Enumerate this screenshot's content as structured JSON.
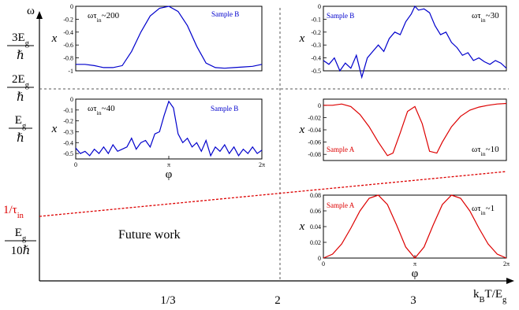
{
  "main_axes": {
    "x_label": "k",
    "x_label_sub": "B",
    "x_label_mid": "T/E",
    "x_label_sub2": "g",
    "x_ticks": [
      "1/3",
      "2",
      "3"
    ],
    "y_label": "ω",
    "y_levels": [
      {
        "num": "3E",
        "num_sub": "g",
        "den": "ℏ"
      },
      {
        "num": "2E",
        "num_sub": "g",
        "den": "ℏ"
      },
      {
        "num": "E",
        "num_sub": "g",
        "den": "ℏ"
      },
      {
        "num": "E",
        "num_sub": "g",
        "den": "10ℏ"
      }
    ],
    "tau_label": "1/τ",
    "tau_label_sub": "in",
    "tau_color": "#dd0000",
    "future_work": "Future work"
  },
  "chart_data": [
    {
      "type": "line",
      "name": "top-left",
      "annotation": "ωτ",
      "annotation_sub": "in",
      "annotation_tail": "~200",
      "sample": "Sample B",
      "color": "#0000cc",
      "ylabel": "x",
      "ylim": [
        -1,
        0
      ],
      "yticks": [
        "0",
        "-0.2",
        "-0.4",
        "-0.6",
        "-0.8",
        "-1"
      ],
      "x": [
        0,
        0.05,
        0.1,
        0.15,
        0.2,
        0.25,
        0.3,
        0.35,
        0.4,
        0.45,
        0.5,
        0.55,
        0.6,
        0.65,
        0.7,
        0.75,
        0.8,
        0.85,
        0.9,
        0.95,
        1
      ],
      "y": [
        -0.9,
        -0.9,
        -0.92,
        -0.95,
        -0.95,
        -0.92,
        -0.7,
        -0.4,
        -0.15,
        -0.03,
        0,
        -0.08,
        -0.3,
        -0.62,
        -0.88,
        -0.95,
        -0.96,
        -0.95,
        -0.94,
        -0.93,
        -0.9
      ]
    },
    {
      "type": "line",
      "name": "top-right",
      "annotation": "ωτ",
      "annotation_sub": "in",
      "annotation_tail": "~30",
      "sample": "Sample B",
      "color": "#0000cc",
      "ylabel": "x",
      "ylim": [
        -0.5,
        0
      ],
      "yticks": [
        "0",
        "-0.1",
        "-0.2",
        "-0.3",
        "-0.4",
        "-0.5"
      ],
      "x": [
        0,
        0.03,
        0.06,
        0.09,
        0.12,
        0.15,
        0.18,
        0.21,
        0.24,
        0.27,
        0.3,
        0.33,
        0.36,
        0.39,
        0.42,
        0.45,
        0.48,
        0.5,
        0.52,
        0.55,
        0.58,
        0.61,
        0.64,
        0.67,
        0.7,
        0.73,
        0.76,
        0.79,
        0.82,
        0.85,
        0.88,
        0.91,
        0.94,
        0.97,
        1
      ],
      "y": [
        -0.42,
        -0.45,
        -0.4,
        -0.5,
        -0.44,
        -0.48,
        -0.38,
        -0.55,
        -0.4,
        -0.35,
        -0.3,
        -0.35,
        -0.25,
        -0.2,
        -0.22,
        -0.12,
        -0.06,
        0,
        -0.03,
        -0.02,
        -0.05,
        -0.15,
        -0.22,
        -0.2,
        -0.28,
        -0.32,
        -0.38,
        -0.36,
        -0.42,
        -0.4,
        -0.43,
        -0.45,
        -0.42,
        -0.44,
        -0.48
      ]
    },
    {
      "type": "line",
      "name": "middle-left",
      "annotation": "ωτ",
      "annotation_sub": "in",
      "annotation_tail": "~40",
      "sample": "Sample B",
      "color": "#0000cc",
      "ylabel": "x",
      "xlabel": "φ",
      "ylim": [
        -0.55,
        0
      ],
      "yticks": [
        "0",
        "-0.1",
        "-0.2",
        "-0.3",
        "-0.4",
        "-0.5"
      ],
      "xticks": [
        "0",
        "π",
        "2π"
      ],
      "x": [
        0,
        0.025,
        0.05,
        0.075,
        0.1,
        0.125,
        0.15,
        0.175,
        0.2,
        0.225,
        0.25,
        0.275,
        0.3,
        0.325,
        0.35,
        0.375,
        0.4,
        0.425,
        0.45,
        0.475,
        0.5,
        0.525,
        0.55,
        0.575,
        0.6,
        0.625,
        0.65,
        0.675,
        0.7,
        0.725,
        0.75,
        0.775,
        0.8,
        0.825,
        0.85,
        0.875,
        0.9,
        0.925,
        0.95,
        0.975,
        1
      ],
      "y": [
        -0.45,
        -0.5,
        -0.48,
        -0.52,
        -0.46,
        -0.5,
        -0.44,
        -0.5,
        -0.42,
        -0.48,
        -0.46,
        -0.44,
        -0.36,
        -0.46,
        -0.4,
        -0.38,
        -0.44,
        -0.32,
        -0.3,
        -0.15,
        -0.02,
        -0.08,
        -0.32,
        -0.4,
        -0.36,
        -0.44,
        -0.4,
        -0.48,
        -0.38,
        -0.52,
        -0.44,
        -0.48,
        -0.42,
        -0.5,
        -0.44,
        -0.52,
        -0.46,
        -0.5,
        -0.44,
        -0.5,
        -0.47
      ]
    },
    {
      "type": "line",
      "name": "middle-right",
      "annotation": "ωτ",
      "annotation_sub": "in",
      "annotation_tail": "~10",
      "sample": "Sample A",
      "color": "#dd0000",
      "ylabel": "x",
      "ylim": [
        -0.09,
        0.01
      ],
      "yticks": [
        "0",
        "-0.02",
        "-0.04",
        "-0.06",
        "-0.08"
      ],
      "x": [
        0,
        0.05,
        0.1,
        0.15,
        0.2,
        0.25,
        0.3,
        0.35,
        0.38,
        0.42,
        0.46,
        0.5,
        0.54,
        0.58,
        0.62,
        0.65,
        0.7,
        0.75,
        0.8,
        0.85,
        0.9,
        0.95,
        1
      ],
      "y": [
        0,
        0,
        0.002,
        -0.002,
        -0.015,
        -0.035,
        -0.06,
        -0.082,
        -0.078,
        -0.045,
        -0.01,
        -0.002,
        -0.03,
        -0.075,
        -0.078,
        -0.06,
        -0.035,
        -0.018,
        -0.008,
        -0.003,
        0,
        0.002,
        0.003
      ]
    },
    {
      "type": "line",
      "name": "bottom-right",
      "annotation": "ωτ",
      "annotation_sub": "in",
      "annotation_tail": "~1",
      "sample": "Sample A",
      "color": "#dd0000",
      "ylabel": "x",
      "xlabel": "φ",
      "ylim": [
        0,
        0.08
      ],
      "yticks": [
        "0.08",
        "0.06",
        "0.04",
        "0.02",
        "0"
      ],
      "xticks": [
        "0",
        "π",
        "2π"
      ],
      "x": [
        0,
        0.05,
        0.1,
        0.15,
        0.2,
        0.25,
        0.3,
        0.35,
        0.4,
        0.45,
        0.5,
        0.55,
        0.6,
        0.65,
        0.7,
        0.75,
        0.8,
        0.85,
        0.9,
        0.95,
        1
      ],
      "y": [
        0,
        0.005,
        0.018,
        0.038,
        0.06,
        0.076,
        0.08,
        0.068,
        0.042,
        0.014,
        0,
        0.014,
        0.042,
        0.068,
        0.08,
        0.076,
        0.06,
        0.038,
        0.018,
        0.005,
        0
      ]
    }
  ]
}
